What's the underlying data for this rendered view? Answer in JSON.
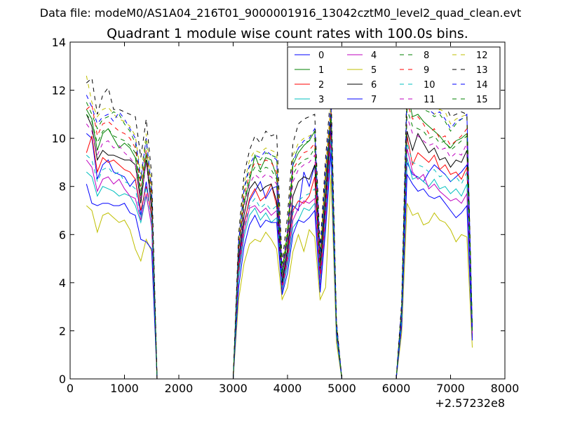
{
  "chart_data": {
    "type": "line",
    "suptitle": "Data file: modeM0/AS1A04_216T01_9000001916_13042cztM0_level2_quad_clean.evt",
    "title": "Quadrant 1 module wise count rates with 100.0s bins.",
    "xlabel": "",
    "ylabel": "",
    "x_offset_label": "+2.57232e8",
    "xlim": [
      0,
      8000
    ],
    "ylim": [
      0,
      14
    ],
    "x_ticks": [
      0,
      1000,
      2000,
      3000,
      4000,
      5000,
      6000,
      7000,
      8000
    ],
    "y_ticks": [
      0,
      2,
      4,
      6,
      8,
      10,
      12,
      14
    ],
    "x_tick_labels": [
      "0",
      "1000",
      "2000",
      "3000",
      "4000",
      "5000",
      "6000",
      "7000",
      "8000"
    ],
    "y_tick_labels": [
      "0",
      "2",
      "4",
      "6",
      "8",
      "10",
      "12",
      "14"
    ],
    "legend_position": "upper-right",
    "legend_columns": 4,
    "x": [
      300,
      400,
      500,
      600,
      700,
      800,
      900,
      1000,
      1100,
      1200,
      1300,
      1400,
      1500,
      1600,
      1650,
      2000,
      2500,
      3000,
      3100,
      3200,
      3300,
      3400,
      3500,
      3600,
      3700,
      3800,
      3900,
      4000,
      4100,
      4200,
      4300,
      4400,
      4500,
      4600,
      4700,
      4800,
      4900,
      5000,
      5500,
      6000,
      6100,
      6200,
      6300,
      6400,
      6500,
      6600,
      6700,
      6800,
      6900,
      7000,
      7100,
      7200,
      7300,
      7400
    ],
    "series": [
      {
        "name": "0",
        "color": "#0000ff",
        "dash": "solid",
        "values": [
          10.2,
          10.0,
          8.3,
          8.9,
          9.1,
          8.6,
          8.5,
          8.4,
          8.0,
          8.3,
          6.8,
          8.2,
          6.7,
          0.0,
          0.0,
          0.0,
          0.0,
          0.0,
          4.8,
          6.5,
          7.4,
          7.8,
          8.2,
          7.5,
          7.9,
          8.0,
          3.9,
          5.2,
          7.2,
          7.0,
          8.6,
          8.0,
          8.9,
          4.4,
          7.2,
          10.5,
          2.0,
          0.0,
          0.0,
          0.0,
          2.6,
          9.0,
          8.5,
          8.4,
          8.2,
          8.6,
          8.9,
          8.7,
          8.5,
          8.2,
          8.4,
          8.6,
          8.9,
          1.8
        ]
      },
      {
        "name": "1",
        "color": "#008000",
        "dash": "solid",
        "values": [
          11.2,
          10.8,
          9.5,
          10.2,
          10.4,
          10.0,
          9.6,
          9.8,
          9.6,
          9.2,
          7.6,
          9.4,
          7.3,
          0.0,
          0.0,
          0.0,
          0.0,
          0.0,
          5.4,
          7.3,
          8.2,
          9.3,
          8.7,
          9.2,
          9.1,
          8.4,
          4.2,
          5.8,
          8.9,
          9.4,
          9.7,
          9.9,
          10.3,
          4.9,
          8.1,
          11.2,
          2.2,
          0.0,
          0.0,
          0.0,
          2.9,
          12.0,
          10.9,
          11.0,
          10.7,
          10.5,
          10.3,
          10.1,
          9.8,
          9.6,
          9.9,
          10.0,
          10.2,
          2.0
        ]
      },
      {
        "name": "2",
        "color": "#ff0000",
        "dash": "solid",
        "values": [
          9.4,
          10.1,
          8.6,
          9.2,
          9.0,
          9.1,
          8.9,
          8.7,
          8.6,
          8.3,
          7.0,
          8.0,
          6.8,
          0.0,
          0.0,
          0.0,
          0.0,
          0.0,
          4.6,
          6.4,
          7.5,
          7.9,
          7.4,
          7.6,
          8.1,
          7.2,
          3.8,
          5.1,
          7.0,
          7.4,
          7.3,
          7.6,
          8.4,
          4.2,
          7.0,
          10.2,
          1.9,
          0.0,
          0.0,
          0.0,
          2.5,
          10.1,
          8.9,
          9.4,
          9.2,
          9.0,
          9.3,
          8.7,
          8.9,
          8.5,
          8.6,
          8.3,
          8.8,
          1.8
        ]
      },
      {
        "name": "3",
        "color": "#00bfbf",
        "dash": "solid",
        "values": [
          8.6,
          8.4,
          7.6,
          8.0,
          7.9,
          7.8,
          7.6,
          7.7,
          7.6,
          7.2,
          6.5,
          7.6,
          6.4,
          0.0,
          0.0,
          0.0,
          0.0,
          0.0,
          4.2,
          5.9,
          6.8,
          7.1,
          6.6,
          6.9,
          6.5,
          6.7,
          3.6,
          4.7,
          6.3,
          6.6,
          7.1,
          7.0,
          7.3,
          3.6,
          6.4,
          9.6,
          1.8,
          0.0,
          0.0,
          0.0,
          2.3,
          9.2,
          8.3,
          8.4,
          8.2,
          8.0,
          8.3,
          7.9,
          8.0,
          7.7,
          7.9,
          7.6,
          8.1,
          1.7
        ]
      },
      {
        "name": "4",
        "color": "#bf00bf",
        "dash": "solid",
        "values": [
          9.1,
          8.8,
          7.8,
          8.3,
          8.4,
          8.1,
          8.3,
          7.9,
          7.6,
          7.5,
          6.6,
          7.7,
          6.3,
          0.0,
          0.0,
          0.0,
          0.0,
          0.0,
          4.4,
          6.1,
          7.1,
          7.2,
          6.9,
          7.1,
          6.8,
          7.0,
          3.7,
          4.9,
          6.6,
          7.1,
          7.4,
          7.3,
          7.5,
          3.9,
          6.7,
          9.9,
          1.9,
          0.0,
          0.0,
          0.0,
          2.4,
          9.6,
          8.6,
          8.3,
          8.5,
          7.9,
          8.1,
          7.8,
          7.6,
          7.4,
          7.5,
          7.3,
          7.7,
          1.7
        ]
      },
      {
        "name": "5",
        "color": "#bfbf00",
        "dash": "solid",
        "values": [
          7.2,
          7.0,
          6.1,
          6.8,
          6.9,
          6.7,
          6.5,
          6.6,
          6.2,
          5.4,
          4.9,
          5.8,
          5.3,
          0.0,
          0.0,
          0.0,
          0.0,
          0.0,
          3.3,
          4.8,
          5.6,
          5.8,
          5.7,
          6.1,
          5.8,
          5.4,
          3.3,
          3.8,
          5.3,
          6.0,
          5.3,
          6.2,
          5.9,
          3.3,
          3.8,
          8.5,
          1.5,
          0.0,
          0.0,
          0.0,
          1.9,
          7.3,
          6.8,
          6.9,
          6.4,
          6.5,
          6.9,
          6.6,
          6.5,
          6.2,
          5.7,
          6.0,
          5.9,
          1.3
        ]
      },
      {
        "name": "6",
        "color": "#000000",
        "dash": "solid",
        "values": [
          11.0,
          10.5,
          9.1,
          9.5,
          9.3,
          9.3,
          9.2,
          9.1,
          9.1,
          8.9,
          7.3,
          9.1,
          7.0,
          0.0,
          0.0,
          0.0,
          0.0,
          0.0,
          5.0,
          6.8,
          7.9,
          8.2,
          7.8,
          8.0,
          8.1,
          7.4,
          4.0,
          5.4,
          7.6,
          8.2,
          8.4,
          8.3,
          8.9,
          4.6,
          7.5,
          10.8,
          2.0,
          0.0,
          0.0,
          0.0,
          2.7,
          10.3,
          9.5,
          10.2,
          9.8,
          9.4,
          9.6,
          9.1,
          9.2,
          8.8,
          9.1,
          9.0,
          9.5,
          1.9
        ]
      },
      {
        "name": "7",
        "color": "#0000ff",
        "dash": "solid",
        "values": [
          8.1,
          7.3,
          7.2,
          7.3,
          7.3,
          7.2,
          7.2,
          7.3,
          6.9,
          6.8,
          5.8,
          5.7,
          5.4,
          0.0,
          0.0,
          0.0,
          0.0,
          0.0,
          3.8,
          5.5,
          6.4,
          6.8,
          6.3,
          6.6,
          6.5,
          6.5,
          3.5,
          4.4,
          6.0,
          6.6,
          6.5,
          6.7,
          7.0,
          3.6,
          6.2,
          9.4,
          1.8,
          0.0,
          0.0,
          0.0,
          2.2,
          8.5,
          8.1,
          7.8,
          7.9,
          7.6,
          7.5,
          7.6,
          7.3,
          7.0,
          6.7,
          6.9,
          7.2,
          1.6
        ]
      },
      {
        "name": "8",
        "color": "#008000",
        "dash": "dashed",
        "values": [
          11.5,
          11.0,
          10.4,
          10.8,
          10.9,
          11.1,
          11.0,
          10.6,
          10.3,
          9.8,
          8.2,
          9.9,
          7.8,
          0.0,
          0.0,
          0.0,
          0.0,
          0.0,
          5.6,
          7.8,
          8.8,
          9.2,
          9.1,
          9.4,
          9.3,
          9.2,
          4.5,
          6.1,
          9.1,
          9.6,
          9.8,
          9.9,
          10.0,
          5.0,
          8.6,
          11.3,
          2.3,
          0.0,
          0.0,
          0.0,
          3.0,
          11.8,
          11.4,
          11.3,
          11.2,
          11.1,
          10.9,
          11.0,
          10.7,
          10.3,
          10.6,
          10.8,
          10.9,
          2.1
        ]
      },
      {
        "name": "9",
        "color": "#ff0000",
        "dash": "dashed",
        "values": [
          11.2,
          11.4,
          10.1,
          10.6,
          10.7,
          10.5,
          10.3,
          10.2,
          10.0,
          9.6,
          8.0,
          9.5,
          7.6,
          0.0,
          0.0,
          0.0,
          0.0,
          0.0,
          5.4,
          7.6,
          8.5,
          9.0,
          8.9,
          9.1,
          9.0,
          8.6,
          4.4,
          6.0,
          8.7,
          9.1,
          9.4,
          9.5,
          9.8,
          4.8,
          8.4,
          11.1,
          2.2,
          0.0,
          0.0,
          0.0,
          2.9,
          11.5,
          10.8,
          10.9,
          10.6,
          10.2,
          10.4,
          10.0,
          10.1,
          9.7,
          9.9,
          10.1,
          10.4,
          2.0
        ]
      },
      {
        "name": "10",
        "color": "#00bfbf",
        "dash": "dashed",
        "values": [
          9.3,
          9.1,
          8.2,
          8.7,
          8.8,
          8.5,
          8.6,
          8.2,
          8.1,
          7.9,
          6.7,
          8.0,
          6.6,
          0.0,
          0.0,
          0.0,
          0.0,
          0.0,
          4.5,
          6.3,
          7.2,
          7.5,
          7.1,
          7.3,
          7.0,
          7.2,
          3.8,
          5.0,
          6.9,
          7.4,
          7.6,
          7.7,
          7.9,
          4.0,
          6.9,
          10.0,
          1.9,
          0.0,
          0.0,
          0.0,
          2.5,
          9.8,
          9.0,
          8.9,
          8.8,
          8.6,
          8.7,
          8.4,
          8.5,
          8.2,
          8.4,
          8.1,
          8.6,
          1.8
        ]
      },
      {
        "name": "11",
        "color": "#bf00bf",
        "dash": "dashed",
        "values": [
          10.6,
          10.3,
          9.3,
          9.8,
          9.9,
          9.6,
          9.7,
          9.4,
          9.2,
          8.9,
          7.5,
          9.0,
          7.2,
          0.0,
          0.0,
          0.0,
          0.0,
          0.0,
          5.1,
          7.1,
          8.1,
          8.5,
          8.3,
          8.5,
          8.4,
          8.1,
          4.2,
          5.6,
          8.2,
          8.7,
          8.9,
          9.0,
          9.3,
          4.6,
          8.0,
          10.7,
          2.1,
          0.0,
          0.0,
          0.0,
          2.7,
          10.9,
          10.2,
          10.1,
          9.9,
          9.7,
          9.8,
          9.5,
          9.6,
          9.2,
          9.4,
          9.3,
          9.8,
          1.9
        ]
      },
      {
        "name": "12",
        "color": "#bfbf00",
        "dash": "dashed",
        "values": [
          12.6,
          11.5,
          10.9,
          11.2,
          11.3,
          11.0,
          10.8,
          10.7,
          10.5,
          10.1,
          8.5,
          10.2,
          8.0,
          0.0,
          0.0,
          0.0,
          0.0,
          0.0,
          5.8,
          8.1,
          9.1,
          9.5,
          9.4,
          9.6,
          9.5,
          9.4,
          4.6,
          6.3,
          9.3,
          9.8,
          10.0,
          10.1,
          10.2,
          5.2,
          8.8,
          11.5,
          2.3,
          0.0,
          0.0,
          0.0,
          3.1,
          12.2,
          11.8,
          11.6,
          11.5,
          11.3,
          11.0,
          11.2,
          11.1,
          10.6,
          10.8,
          10.9,
          11.0,
          2.1
        ]
      },
      {
        "name": "13",
        "color": "#000000",
        "dash": "dashed",
        "values": [
          12.3,
          12.5,
          11.0,
          11.8,
          12.1,
          11.2,
          11.2,
          11.1,
          11.0,
          10.9,
          9.2,
          10.8,
          8.5,
          0.0,
          0.0,
          0.0,
          0.0,
          0.0,
          6.0,
          8.5,
          9.5,
          10.1,
          9.8,
          10.3,
          10.1,
          10.2,
          4.8,
          6.8,
          9.8,
          10.6,
          10.8,
          10.9,
          11.0,
          5.4,
          9.2,
          12.0,
          2.4,
          0.0,
          0.0,
          0.0,
          3.2,
          12.5,
          11.9,
          11.8,
          12.0,
          11.6,
          11.3,
          11.5,
          11.4,
          10.9,
          11.0,
          11.1,
          11.0,
          2.2
        ]
      },
      {
        "name": "14",
        "color": "#0000ff",
        "dash": "dashed",
        "values": [
          11.8,
          11.3,
          10.6,
          10.9,
          11.0,
          10.7,
          11.1,
          10.8,
          10.4,
          10.0,
          8.3,
          10.0,
          7.9,
          0.0,
          0.0,
          0.0,
          0.0,
          0.0,
          5.7,
          7.9,
          8.9,
          9.3,
          9.2,
          9.5,
          9.3,
          9.1,
          4.5,
          6.2,
          9.0,
          9.6,
          9.9,
          10.0,
          10.4,
          5.1,
          8.7,
          11.4,
          2.3,
          0.0,
          0.0,
          0.0,
          3.0,
          12.0,
          11.5,
          11.4,
          11.3,
          11.2,
          11.0,
          11.1,
          10.8,
          10.4,
          10.7,
          10.8,
          11.0,
          2.1
        ]
      },
      {
        "name": "15",
        "color": "#008000",
        "dash": "dashed",
        "values": [
          11.0,
          10.7,
          9.8,
          10.3,
          10.4,
          10.1,
          10.0,
          9.9,
          9.7,
          9.4,
          7.8,
          9.3,
          7.4,
          0.0,
          0.0,
          0.0,
          0.0,
          0.0,
          5.3,
          7.4,
          8.4,
          8.8,
          8.6,
          8.8,
          8.7,
          8.3,
          4.3,
          5.9,
          8.5,
          8.9,
          9.1,
          9.2,
          9.6,
          4.7,
          8.2,
          10.9,
          2.1,
          0.0,
          0.0,
          0.0,
          2.8,
          11.2,
          10.5,
          10.4,
          10.3,
          10.0,
          10.1,
          9.8,
          9.9,
          9.5,
          9.7,
          9.9,
          10.1,
          2.0
        ]
      }
    ]
  }
}
